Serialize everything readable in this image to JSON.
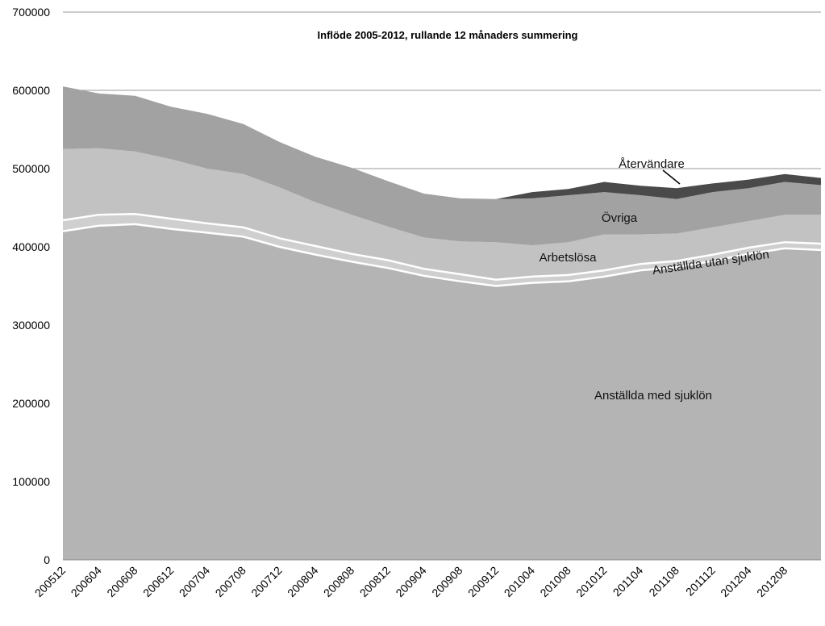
{
  "chart_data": {
    "type": "area",
    "stacked": true,
    "title": "Inflöde 2005-2012, rullande 12 månaders summering",
    "xlabel": "",
    "ylabel": "",
    "ylim": [
      0,
      700000
    ],
    "yticks": [
      0,
      100000,
      200000,
      300000,
      400000,
      500000,
      600000,
      700000
    ],
    "ytick_labels": [
      "0",
      "100000",
      "200000",
      "300000",
      "400000",
      "500000",
      "600000",
      "700000"
    ],
    "xtick_labels": [
      "200512",
      "200604",
      "200608",
      "200612",
      "200704",
      "200708",
      "200712",
      "200804",
      "200808",
      "200812",
      "200904",
      "200908",
      "200912",
      "201004",
      "201008",
      "201012",
      "201104",
      "201108",
      "201112",
      "201204",
      "201208"
    ],
    "grid": "horizontal",
    "legend": "inline labels",
    "x": [
      "200512",
      "200604",
      "200608",
      "200612",
      "200704",
      "200708",
      "200712",
      "200804",
      "200808",
      "200812",
      "200904",
      "200908",
      "200912",
      "201004",
      "201008",
      "201012",
      "201104",
      "201108",
      "201112",
      "201204",
      "201208",
      "201211"
    ],
    "series": [
      {
        "name": "Anställda med sjuklön",
        "color": "#b4b4b4",
        "values": [
          420000,
          427000,
          429000,
          423000,
          418000,
          413000,
          400000,
          390000,
          381000,
          373000,
          363000,
          356000,
          350000,
          354000,
          356000,
          362000,
          370000,
          374000,
          382000,
          391000,
          398000,
          396000
        ]
      },
      {
        "name": "Anställda utan sjuklön",
        "color": "#cfcfcf",
        "values": [
          14000,
          14000,
          13000,
          13000,
          12000,
          12000,
          11000,
          11000,
          10000,
          10000,
          9000,
          9000,
          8000,
          8000,
          8000,
          8000,
          8000,
          8000,
          8000,
          8000,
          8000,
          8000
        ]
      },
      {
        "name": "Arbetslösa",
        "color": "#c2c2c2",
        "values": [
          91000,
          85000,
          80000,
          76000,
          70000,
          68000,
          65000,
          56000,
          50000,
          43000,
          40000,
          42000,
          48000,
          40000,
          42000,
          46000,
          38000,
          35000,
          35000,
          34000,
          35000,
          37000
        ]
      },
      {
        "name": "Övriga",
        "color": "#a2a2a2",
        "values": [
          80000,
          70000,
          71000,
          67000,
          70000,
          64000,
          58000,
          58000,
          60000,
          58000,
          56000,
          55000,
          55000,
          60000,
          60000,
          54000,
          50000,
          44000,
          45000,
          42000,
          42000,
          38000
        ]
      },
      {
        "name": "Återvändare",
        "color": "#4a4a4a",
        "values": [
          0,
          0,
          0,
          0,
          0,
          0,
          0,
          0,
          0,
          0,
          0,
          0,
          0,
          8000,
          8000,
          13000,
          12000,
          14000,
          11000,
          11000,
          10000,
          9000
        ]
      }
    ]
  }
}
